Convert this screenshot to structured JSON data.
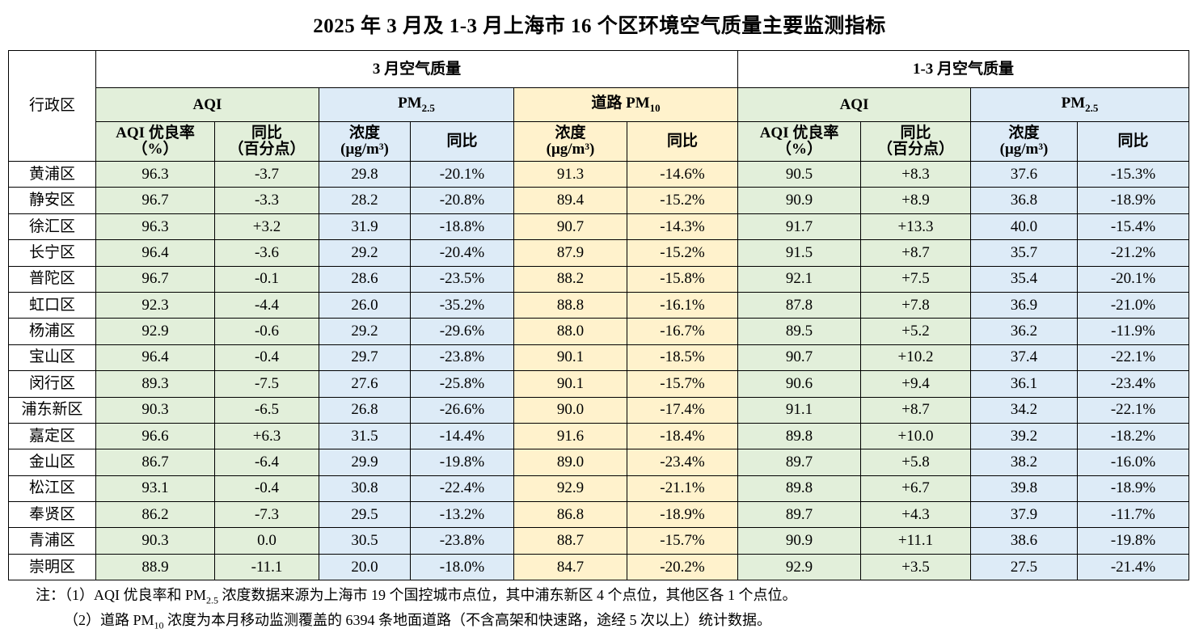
{
  "title": "2025 年 3 月及 1-3 月上海市 16 个区环境空气质量主要监测指标",
  "header": {
    "district": "行政区",
    "march_group": "3 月空气质量",
    "q1_group": "1-3 月空气质量",
    "aqi": "AQI",
    "pm_prefix": "PM",
    "pm25_sub": "2.5",
    "road_pm_prefix": "道路 PM",
    "pm10_sub": "10",
    "aqi_rate_line1": "AQI 优良率",
    "aqi_rate_line2": "（%）",
    "yoy": "同比",
    "yoy_pp": "（百分点）",
    "conc": "浓度",
    "unit": "(μg/m³)"
  },
  "rows": [
    {
      "district": "黄浦区",
      "m_aqi": "96.3",
      "m_aqi_yoy": "-3.7",
      "m_pm25": "29.8",
      "m_pm25_yoy": "-20.1%",
      "m_road": "91.3",
      "m_road_yoy": "-14.6%",
      "q_aqi": "90.5",
      "q_aqi_yoy": "+8.3",
      "q_pm25": "37.6",
      "q_pm25_yoy": "-15.3%"
    },
    {
      "district": "静安区",
      "m_aqi": "96.7",
      "m_aqi_yoy": "-3.3",
      "m_pm25": "28.2",
      "m_pm25_yoy": "-20.8%",
      "m_road": "89.4",
      "m_road_yoy": "-15.2%",
      "q_aqi": "90.9",
      "q_aqi_yoy": "+8.9",
      "q_pm25": "36.8",
      "q_pm25_yoy": "-18.9%"
    },
    {
      "district": "徐汇区",
      "m_aqi": "96.3",
      "m_aqi_yoy": "+3.2",
      "m_pm25": "31.9",
      "m_pm25_yoy": "-18.8%",
      "m_road": "90.7",
      "m_road_yoy": "-14.3%",
      "q_aqi": "91.7",
      "q_aqi_yoy": "+13.3",
      "q_pm25": "40.0",
      "q_pm25_yoy": "-15.4%"
    },
    {
      "district": "长宁区",
      "m_aqi": "96.4",
      "m_aqi_yoy": "-3.6",
      "m_pm25": "29.2",
      "m_pm25_yoy": "-20.4%",
      "m_road": "87.9",
      "m_road_yoy": "-15.2%",
      "q_aqi": "91.5",
      "q_aqi_yoy": "+8.7",
      "q_pm25": "35.7",
      "q_pm25_yoy": "-21.2%"
    },
    {
      "district": "普陀区",
      "m_aqi": "96.7",
      "m_aqi_yoy": "-0.1",
      "m_pm25": "28.6",
      "m_pm25_yoy": "-23.5%",
      "m_road": "88.2",
      "m_road_yoy": "-15.8%",
      "q_aqi": "92.1",
      "q_aqi_yoy": "+7.5",
      "q_pm25": "35.4",
      "q_pm25_yoy": "-20.1%"
    },
    {
      "district": "虹口区",
      "m_aqi": "92.3",
      "m_aqi_yoy": "-4.4",
      "m_pm25": "26.0",
      "m_pm25_yoy": "-35.2%",
      "m_road": "88.8",
      "m_road_yoy": "-16.1%",
      "q_aqi": "87.8",
      "q_aqi_yoy": "+7.8",
      "q_pm25": "36.9",
      "q_pm25_yoy": "-21.0%"
    },
    {
      "district": "杨浦区",
      "m_aqi": "92.9",
      "m_aqi_yoy": "-0.6",
      "m_pm25": "29.2",
      "m_pm25_yoy": "-29.6%",
      "m_road": "88.0",
      "m_road_yoy": "-16.7%",
      "q_aqi": "89.5",
      "q_aqi_yoy": "+5.2",
      "q_pm25": "36.2",
      "q_pm25_yoy": "-11.9%"
    },
    {
      "district": "宝山区",
      "m_aqi": "96.4",
      "m_aqi_yoy": "-0.4",
      "m_pm25": "29.7",
      "m_pm25_yoy": "-23.8%",
      "m_road": "90.1",
      "m_road_yoy": "-18.5%",
      "q_aqi": "90.7",
      "q_aqi_yoy": "+10.2",
      "q_pm25": "37.4",
      "q_pm25_yoy": "-22.1%"
    },
    {
      "district": "闵行区",
      "m_aqi": "89.3",
      "m_aqi_yoy": "-7.5",
      "m_pm25": "27.6",
      "m_pm25_yoy": "-25.8%",
      "m_road": "90.1",
      "m_road_yoy": "-15.7%",
      "q_aqi": "90.6",
      "q_aqi_yoy": "+9.4",
      "q_pm25": "36.1",
      "q_pm25_yoy": "-23.4%"
    },
    {
      "district": "浦东新区",
      "m_aqi": "90.3",
      "m_aqi_yoy": "-6.5",
      "m_pm25": "26.8",
      "m_pm25_yoy": "-26.6%",
      "m_road": "90.0",
      "m_road_yoy": "-17.4%",
      "q_aqi": "91.1",
      "q_aqi_yoy": "+8.7",
      "q_pm25": "34.2",
      "q_pm25_yoy": "-22.1%"
    },
    {
      "district": "嘉定区",
      "m_aqi": "96.6",
      "m_aqi_yoy": "+6.3",
      "m_pm25": "31.5",
      "m_pm25_yoy": "-14.4%",
      "m_road": "91.6",
      "m_road_yoy": "-18.4%",
      "q_aqi": "89.8",
      "q_aqi_yoy": "+10.0",
      "q_pm25": "39.2",
      "q_pm25_yoy": "-18.2%"
    },
    {
      "district": "金山区",
      "m_aqi": "86.7",
      "m_aqi_yoy": "-6.4",
      "m_pm25": "29.9",
      "m_pm25_yoy": "-19.8%",
      "m_road": "89.0",
      "m_road_yoy": "-23.4%",
      "q_aqi": "89.7",
      "q_aqi_yoy": "+5.8",
      "q_pm25": "38.2",
      "q_pm25_yoy": "-16.0%"
    },
    {
      "district": "松江区",
      "m_aqi": "93.1",
      "m_aqi_yoy": "-0.4",
      "m_pm25": "30.8",
      "m_pm25_yoy": "-22.4%",
      "m_road": "92.9",
      "m_road_yoy": "-21.1%",
      "q_aqi": "89.8",
      "q_aqi_yoy": "+6.7",
      "q_pm25": "39.8",
      "q_pm25_yoy": "-18.9%"
    },
    {
      "district": "奉贤区",
      "m_aqi": "86.2",
      "m_aqi_yoy": "-7.3",
      "m_pm25": "29.5",
      "m_pm25_yoy": "-13.2%",
      "m_road": "86.8",
      "m_road_yoy": "-18.9%",
      "q_aqi": "89.7",
      "q_aqi_yoy": "+4.3",
      "q_pm25": "37.9",
      "q_pm25_yoy": "-11.7%"
    },
    {
      "district": "青浦区",
      "m_aqi": "90.3",
      "m_aqi_yoy": "0.0",
      "m_pm25": "30.5",
      "m_pm25_yoy": "-23.8%",
      "m_road": "88.7",
      "m_road_yoy": "-15.7%",
      "q_aqi": "90.9",
      "q_aqi_yoy": "+11.1",
      "q_pm25": "38.6",
      "q_pm25_yoy": "-19.8%"
    },
    {
      "district": "崇明区",
      "m_aqi": "88.9",
      "m_aqi_yoy": "-11.1",
      "m_pm25": "20.0",
      "m_pm25_yoy": "-18.0%",
      "m_road": "84.7",
      "m_road_yoy": "-20.2%",
      "q_aqi": "92.9",
      "q_aqi_yoy": "+3.5",
      "q_pm25": "27.5",
      "q_pm25_yoy": "-21.4%"
    }
  ],
  "notes": {
    "label": "注：",
    "n1_a": "（1）AQI 优良率和 PM",
    "n1_sub": "2.5",
    "n1_b": " 浓度数据来源为上海市 19 个国控城市点位，其中浦东新区 4 个点位，其他区各 1 个点位。",
    "n2_a": "（2）道路 PM",
    "n2_sub": "10",
    "n2_b": " 浓度为本月移动监测覆盖的 6394 条地面道路（不含高架和快速路，途经 5 次以上）统计数据。"
  }
}
